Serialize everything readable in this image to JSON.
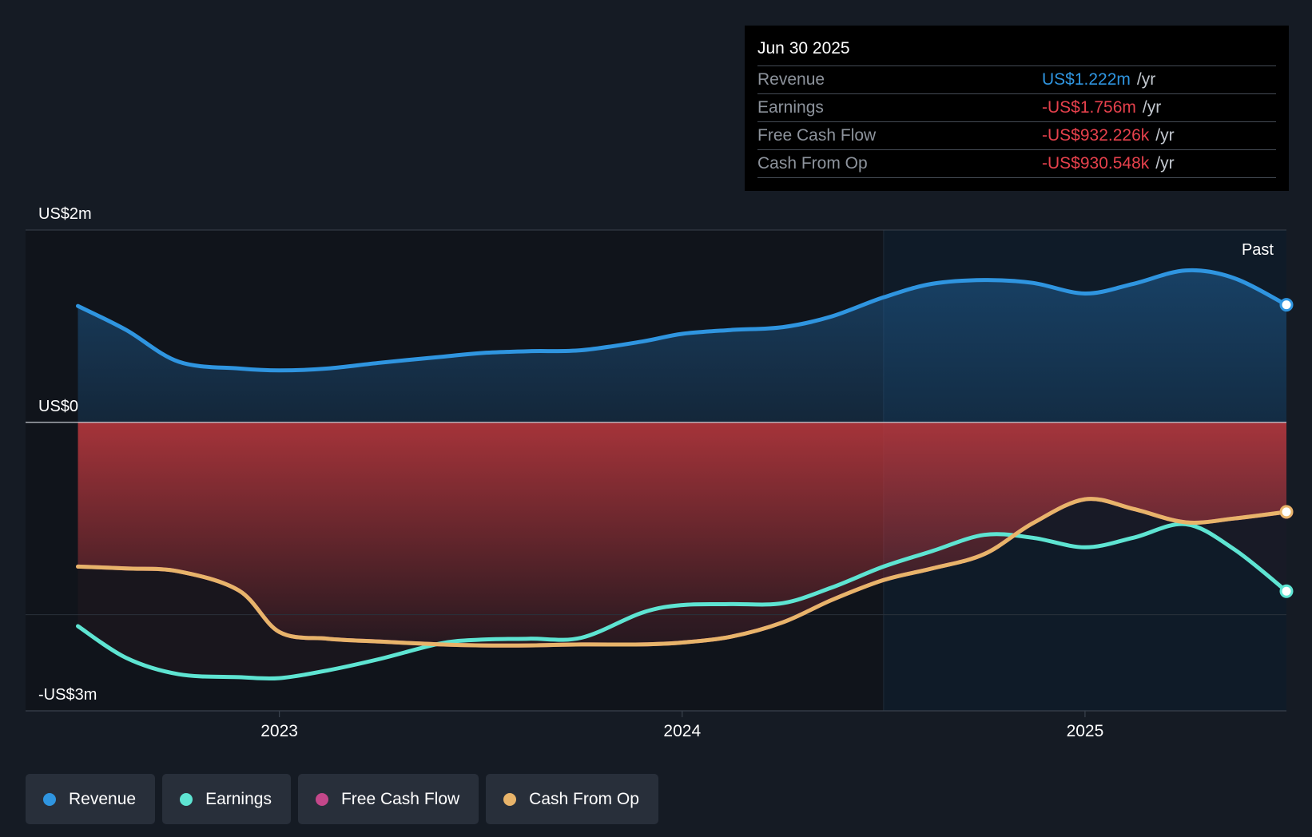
{
  "chart_data": {
    "type": "line",
    "title": "",
    "y_unit": "US$m",
    "ylim": [
      -3,
      2
    ],
    "y_ticks": [
      {
        "value": 2,
        "label": "US$2m"
      },
      {
        "value": 0,
        "label": "US$0"
      },
      {
        "value": -3,
        "label": "-US$3m"
      }
    ],
    "x_ticks": [
      {
        "value": 2023.0,
        "label": "2023"
      },
      {
        "value": 2024.0,
        "label": "2024"
      },
      {
        "value": 2025.0,
        "label": "2025"
      }
    ],
    "xlim": [
      2022.37,
      2025.5
    ],
    "past_start": 2024.5,
    "past_label": "Past",
    "series": [
      {
        "name": "Revenue",
        "color": "#2f95e0",
        "x": [
          2022.5,
          2022.62,
          2022.75,
          2022.9,
          2023.0,
          2023.12,
          2023.25,
          2023.4,
          2023.5,
          2023.62,
          2023.75,
          2023.9,
          2024.0,
          2024.12,
          2024.25,
          2024.37,
          2024.5,
          2024.62,
          2024.75,
          2024.87,
          2025.0,
          2025.12,
          2025.25,
          2025.37,
          2025.5
        ],
        "y": [
          1.21,
          0.96,
          0.63,
          0.56,
          0.54,
          0.56,
          0.62,
          0.68,
          0.72,
          0.74,
          0.75,
          0.84,
          0.92,
          0.96,
          0.99,
          1.1,
          1.3,
          1.44,
          1.48,
          1.45,
          1.34,
          1.44,
          1.58,
          1.5,
          1.222
        ]
      },
      {
        "name": "Earnings",
        "color": "#5ee4d2",
        "x": [
          2022.5,
          2022.62,
          2022.75,
          2022.9,
          2023.0,
          2023.12,
          2023.25,
          2023.4,
          2023.5,
          2023.62,
          2023.75,
          2023.9,
          2024.0,
          2024.12,
          2024.25,
          2024.37,
          2024.5,
          2024.62,
          2024.75,
          2024.87,
          2025.0,
          2025.12,
          2025.25,
          2025.37,
          2025.5
        ],
        "y": [
          -2.12,
          -2.45,
          -2.62,
          -2.65,
          -2.66,
          -2.58,
          -2.46,
          -2.3,
          -2.26,
          -2.25,
          -2.24,
          -1.98,
          -1.9,
          -1.89,
          -1.88,
          -1.72,
          -1.5,
          -1.34,
          -1.17,
          -1.2,
          -1.3,
          -1.2,
          -1.06,
          -1.32,
          -1.756
        ]
      },
      {
        "name": "Free Cash Flow",
        "color": "#c4478a",
        "x": [
          2022.5,
          2022.62,
          2022.75,
          2022.9,
          2023.0,
          2023.12,
          2023.25,
          2023.4,
          2023.5,
          2023.62,
          2023.75,
          2023.9,
          2024.0,
          2024.12,
          2024.25,
          2024.37,
          2024.5,
          2024.62,
          2024.75,
          2024.87,
          2025.0,
          2025.12,
          2025.25,
          2025.37,
          2025.5
        ],
        "y": [
          -1.5,
          -1.52,
          -1.55,
          -1.75,
          -2.18,
          -2.25,
          -2.28,
          -2.31,
          -2.32,
          -2.32,
          -2.31,
          -2.31,
          -2.29,
          -2.23,
          -2.08,
          -1.85,
          -1.64,
          -1.52,
          -1.37,
          -1.05,
          -0.8,
          -0.9,
          -1.04,
          -1.0,
          -0.932
        ]
      },
      {
        "name": "Cash From Op",
        "color": "#e8b46a",
        "x": [
          2022.5,
          2022.62,
          2022.75,
          2022.9,
          2023.0,
          2023.12,
          2023.25,
          2023.4,
          2023.5,
          2023.62,
          2023.75,
          2023.9,
          2024.0,
          2024.12,
          2024.25,
          2024.37,
          2024.5,
          2024.62,
          2024.75,
          2024.87,
          2025.0,
          2025.12,
          2025.25,
          2025.37,
          2025.5
        ],
        "y": [
          -1.5,
          -1.52,
          -1.55,
          -1.75,
          -2.18,
          -2.25,
          -2.28,
          -2.31,
          -2.32,
          -2.32,
          -2.31,
          -2.31,
          -2.29,
          -2.23,
          -2.08,
          -1.85,
          -1.64,
          -1.52,
          -1.37,
          -1.05,
          -0.8,
          -0.9,
          -1.04,
          -1.0,
          -0.931
        ]
      }
    ]
  },
  "tooltip": {
    "date": "Jun 30 2025",
    "rows": [
      {
        "label": "Revenue",
        "value": "US$1.222m",
        "unit": "/yr"
      },
      {
        "label": "Earnings",
        "value": "-US$1.756m",
        "unit": "/yr"
      },
      {
        "label": "Free Cash Flow",
        "value": "-US$932.226k",
        "unit": "/yr"
      },
      {
        "label": "Cash From Op",
        "value": "-US$930.548k",
        "unit": "/yr"
      }
    ]
  },
  "legend": [
    {
      "label": "Revenue",
      "color": "#2f95e0"
    },
    {
      "label": "Earnings",
      "color": "#5ee4d2"
    },
    {
      "label": "Free Cash Flow",
      "color": "#c4478a"
    },
    {
      "label": "Cash From Op",
      "color": "#e8b46a"
    }
  ]
}
